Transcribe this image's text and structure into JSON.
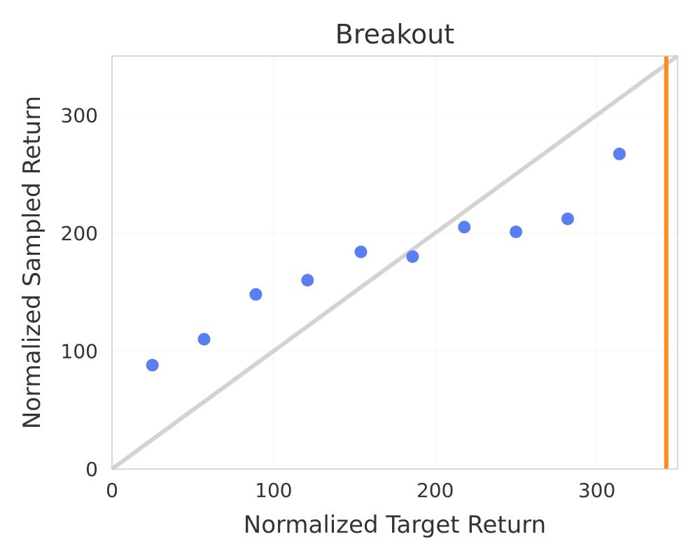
{
  "chart_data": {
    "type": "scatter",
    "title": "Breakout",
    "xlabel": "Normalized Target Return",
    "ylabel": "Normalized Sampled Return",
    "xlim": [
      0,
      350
    ],
    "ylim": [
      0,
      350
    ],
    "xticks": [
      0,
      100,
      200,
      300
    ],
    "yticks": [
      0,
      100,
      200,
      300
    ],
    "grid": true,
    "series": [
      {
        "points": [
          [
            25,
            88
          ],
          [
            57,
            110
          ],
          [
            89,
            148
          ],
          [
            121,
            160
          ],
          [
            154,
            184
          ],
          [
            186,
            180
          ],
          [
            218,
            205
          ],
          [
            250,
            201
          ],
          [
            282,
            212
          ],
          [
            314,
            267
          ]
        ],
        "color": "#5b7ff0"
      }
    ],
    "reference_lines": [
      {
        "kind": "diagonal y=x",
        "color": "#d3d3d3"
      },
      {
        "kind": "vertical",
        "x": 343,
        "color": "#ff8c1a"
      }
    ]
  }
}
